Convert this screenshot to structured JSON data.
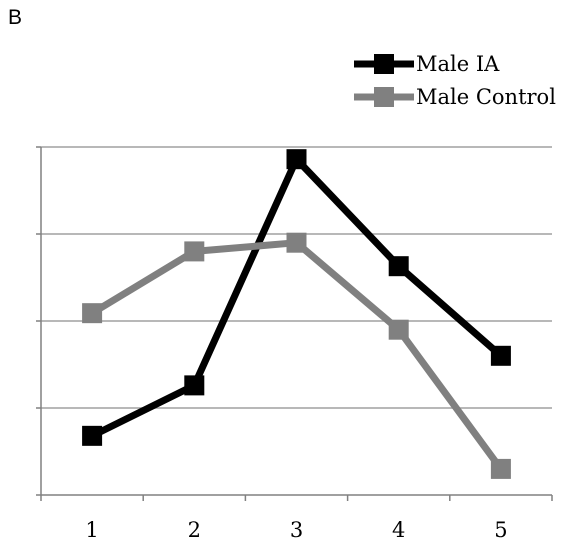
{
  "panel_label": "B",
  "chart_data": {
    "type": "line",
    "x": [
      1,
      2,
      3,
      4,
      5
    ],
    "categories": [
      "1",
      "2",
      "3",
      "4",
      "5"
    ],
    "ylim": [
      0,
      4
    ],
    "y_gridlines": [
      1,
      2,
      3,
      4
    ],
    "grid": true,
    "y_tick_labels_shown": false,
    "legend_position": "top-right",
    "series": [
      {
        "name": "Male IA",
        "values": [
          0.68,
          1.26,
          3.86,
          2.63,
          1.6
        ],
        "color": "#000000"
      },
      {
        "name": "Male Control",
        "values": [
          2.09,
          2.8,
          2.9,
          1.9,
          0.3
        ],
        "color": "#808080"
      }
    ],
    "gridline_color": "#a0a0a0",
    "axis_color": "#808080"
  }
}
